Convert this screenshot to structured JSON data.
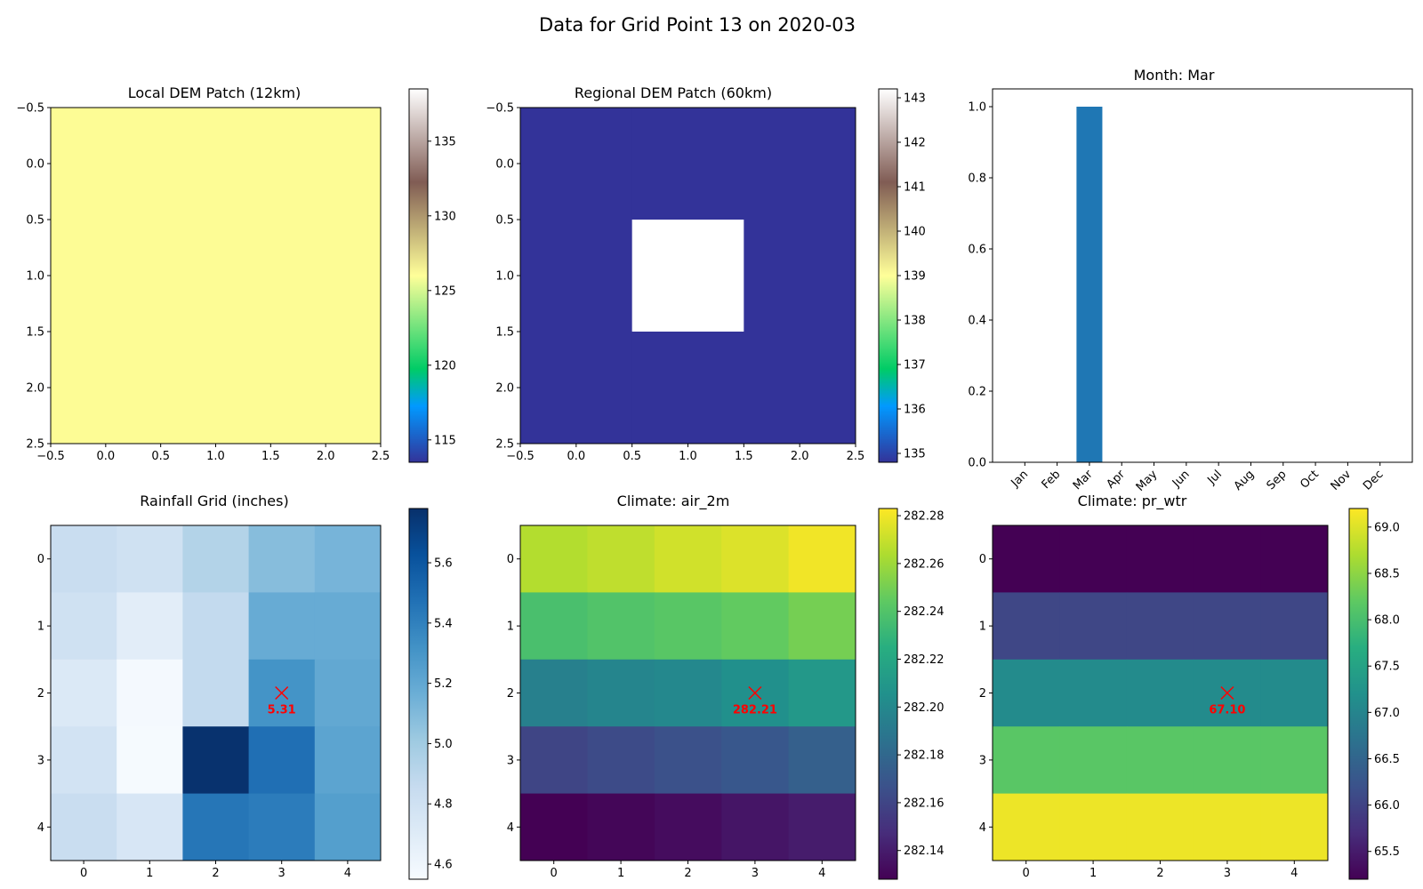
{
  "figure": {
    "title": "Data for Grid Point 13 on 2020-03"
  },
  "chart_data": [
    {
      "id": "local-dem",
      "type": "heatmap",
      "title": "Local DEM Patch (12km)",
      "x_ticks": [
        "−0.5",
        "0.0",
        "0.5",
        "1.0",
        "1.5",
        "2.0",
        "2.5"
      ],
      "y_ticks": [
        "−0.5",
        "0.0",
        "0.5",
        "1.0",
        "1.5",
        "2.0",
        "2.5"
      ],
      "grid": [
        [
          127,
          127
        ],
        [
          127,
          127
        ]
      ],
      "colormap": "terrain",
      "fill_color": "#fdfc95",
      "colorbar": {
        "min": 113.5,
        "max": 138.5,
        "ticks": [
          115,
          120,
          125,
          130,
          135
        ]
      }
    },
    {
      "id": "regional-dem",
      "type": "heatmap",
      "title": "Regional DEM Patch (60km)",
      "x_ticks": [
        "−0.5",
        "0.0",
        "0.5",
        "1.0",
        "1.5",
        "2.0",
        "2.5"
      ],
      "y_ticks": [
        "−0.5",
        "0.0",
        "0.5",
        "1.0",
        "1.5",
        "2.0",
        "2.5"
      ],
      "grid": [
        [
          134.8,
          134.8,
          134.8
        ],
        [
          134.8,
          143.2,
          134.8
        ],
        [
          134.8,
          134.8,
          134.8
        ]
      ],
      "colormap": "terrain",
      "colorbar": {
        "min": 134.8,
        "max": 143.2,
        "ticks": [
          135,
          136,
          137,
          138,
          139,
          140,
          141,
          142,
          143
        ]
      }
    },
    {
      "id": "month-bar",
      "type": "bar",
      "title": "Month: Mar",
      "categories": [
        "Jan",
        "Feb",
        "Mar",
        "Apr",
        "May",
        "Jun",
        "Jul",
        "Aug",
        "Sep",
        "Oct",
        "Nov",
        "Dec"
      ],
      "values": [
        0,
        0,
        1,
        0,
        0,
        0,
        0,
        0,
        0,
        0,
        0,
        0
      ],
      "ylim": [
        0,
        1.05
      ],
      "y_ticks": [
        "0.0",
        "0.2",
        "0.4",
        "0.6",
        "0.8",
        "1.0"
      ],
      "bar_color": "#1f77b4"
    },
    {
      "id": "rainfall",
      "type": "heatmap",
      "title": "Rainfall Grid (inches)",
      "x_ticks": [
        "0",
        "1",
        "2",
        "3",
        "4"
      ],
      "y_ticks": [
        "0",
        "1",
        "2",
        "3",
        "4"
      ],
      "grid": [
        [
          4.84,
          4.8,
          4.93,
          5.08,
          5.13
        ],
        [
          4.8,
          4.68,
          4.87,
          5.18,
          5.18
        ],
        [
          4.72,
          4.57,
          4.87,
          5.31,
          5.2
        ],
        [
          4.78,
          4.56,
          5.77,
          5.48,
          5.22
        ],
        [
          4.84,
          4.75,
          5.45,
          5.42,
          5.25
        ]
      ],
      "colormap": "Blues",
      "colorbar": {
        "min": 4.55,
        "max": 5.78,
        "ticks": [
          "4.6",
          "4.8",
          "5.0",
          "5.2",
          "5.4",
          "5.6"
        ]
      },
      "marker": {
        "row": 2,
        "col": 3,
        "label": "5.31"
      }
    },
    {
      "id": "air-2m",
      "type": "heatmap",
      "title": "Climate: air_2m",
      "x_ticks": [
        "0",
        "1",
        "2",
        "3",
        "4"
      ],
      "y_ticks": [
        "0",
        "1",
        "2",
        "3",
        "4"
      ],
      "grid": [
        [
          282.265,
          282.268,
          282.272,
          282.275,
          282.28
        ],
        [
          282.237,
          282.24,
          282.242,
          282.245,
          282.25
        ],
        [
          282.195,
          282.198,
          282.2,
          282.205,
          282.21
        ],
        [
          282.16,
          282.163,
          282.166,
          282.17,
          282.175
        ],
        [
          282.128,
          282.13,
          282.133,
          282.137,
          282.14
        ]
      ],
      "colormap": "viridis",
      "colorbar": {
        "min": 282.128,
        "max": 282.283,
        "ticks": [
          "282.14",
          "282.16",
          "282.18",
          "282.20",
          "282.22",
          "282.24",
          "282.26",
          "282.28"
        ]
      },
      "marker": {
        "row": 2,
        "col": 3,
        "label": "282.21"
      }
    },
    {
      "id": "pr-wtr",
      "type": "heatmap",
      "title": "Climate: pr_wtr",
      "x_ticks": [
        "0",
        "1",
        "2",
        "3",
        "4"
      ],
      "y_ticks": [
        "0",
        "1",
        "2",
        "3",
        "4"
      ],
      "grid": [
        [
          65.2,
          65.2,
          65.2,
          65.2,
          65.2
        ],
        [
          66.05,
          66.05,
          66.05,
          66.05,
          66.05
        ],
        [
          67.1,
          67.1,
          67.1,
          67.1,
          67.1
        ],
        [
          68.15,
          68.15,
          68.15,
          68.15,
          68.15
        ],
        [
          69.1,
          69.1,
          69.1,
          69.1,
          69.1
        ]
      ],
      "colormap": "viridis",
      "colorbar": {
        "min": 65.2,
        "max": 69.2,
        "ticks": [
          "65.5",
          "66.0",
          "66.5",
          "67.0",
          "67.5",
          "68.0",
          "68.5",
          "69.0"
        ]
      },
      "marker": {
        "row": 2,
        "col": 3,
        "label": "67.10"
      }
    }
  ]
}
